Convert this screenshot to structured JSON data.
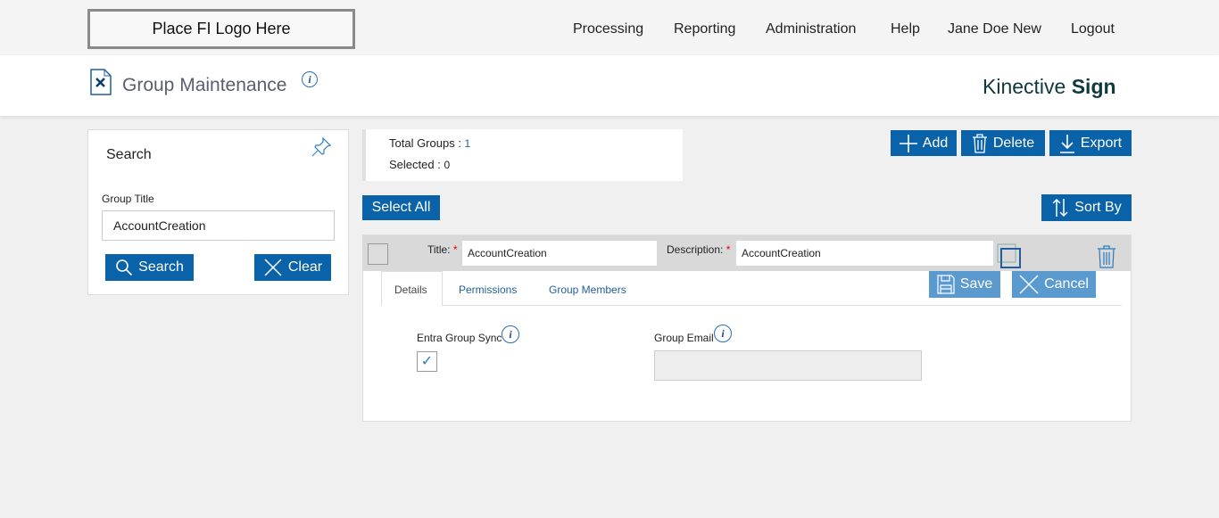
{
  "topbar": {
    "logo": "Place FI Logo Here",
    "nav": [
      "Processing",
      "Reporting",
      "Administration",
      "Help",
      "Jane Doe New",
      "Logout"
    ]
  },
  "header": {
    "title": "Group Maintenance",
    "brand_light": "Kinective ",
    "brand_bold": "Sign"
  },
  "search": {
    "heading": "Search",
    "field_label": "Group Title",
    "field_value": "AccountCreation",
    "search_label": "Search",
    "clear_label": "Clear"
  },
  "summary": {
    "total_label": "Total Groups : ",
    "total_value": "1",
    "selected_label": "Selected : ",
    "selected_value": "0"
  },
  "toolbar": {
    "add": "Add",
    "delete": "Delete",
    "export": "Export",
    "select_all": "Select All",
    "sort_by": "Sort By"
  },
  "group": {
    "title_label": "Title:",
    "title_value": "AccountCreation",
    "desc_label": "Description:",
    "desc_value": "AccountCreation",
    "required_mark": "*",
    "tabs": [
      "Details",
      "Permissions",
      "Group Members"
    ],
    "save": "Save",
    "cancel": "Cancel",
    "entra_label": "Entra Group Sync",
    "entra_checked": true,
    "email_label": "Group Email",
    "email_value": ""
  },
  "colors": {
    "primary": "#0a62a8",
    "disabled": "#5b9acf",
    "brand": "#0e3a3f"
  }
}
